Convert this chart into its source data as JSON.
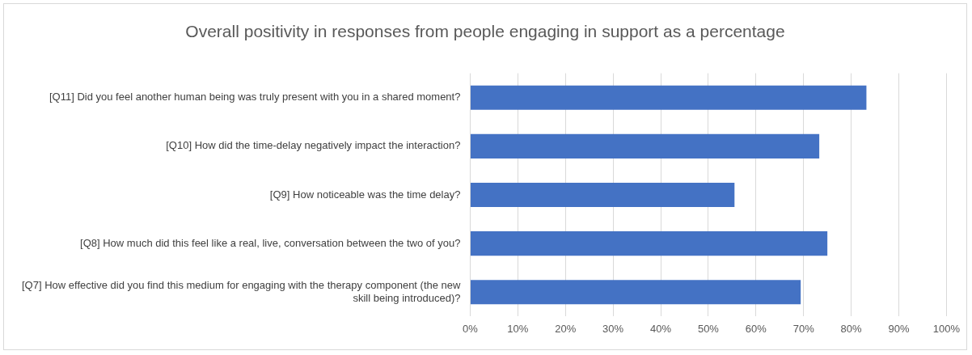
{
  "chart_data": {
    "type": "bar",
    "orientation": "horizontal",
    "title": "Overall positivity in responses from people engaging in support as a percentage",
    "categories": [
      "[Q11] Did you feel another human being was truly present with you in a shared moment?",
      "[Q10] How did the time-delay negatively impact the interaction?",
      "[Q9] How noticeable was the time delay?",
      "[Q8] How much did this feel like a real, live, conversation between the two of you?",
      "[Q7] How effective did you find this medium for engaging with the therapy component (the new skill being introduced)?"
    ],
    "values": [
      83.2,
      73.3,
      55.5,
      75,
      69.4
    ],
    "color": "#4472c4",
    "xlim": [
      0,
      100
    ],
    "xticks": [
      {
        "value": 0,
        "label": "0%"
      },
      {
        "value": 10,
        "label": "10%"
      },
      {
        "value": 20,
        "label": "20%"
      },
      {
        "value": 30,
        "label": "30%"
      },
      {
        "value": 40,
        "label": "40%"
      },
      {
        "value": 50,
        "label": "50%"
      },
      {
        "value": 60,
        "label": "60%"
      },
      {
        "value": 70,
        "label": "70%"
      },
      {
        "value": 80,
        "label": "80%"
      },
      {
        "value": 90,
        "label": "90%"
      },
      {
        "value": 100,
        "label": "100%"
      }
    ],
    "grid": "x",
    "legend": false
  }
}
